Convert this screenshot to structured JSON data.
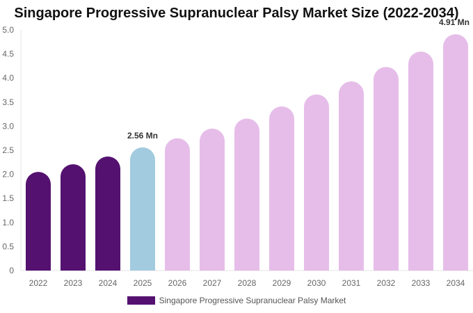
{
  "chart_data": {
    "type": "bar",
    "title": "Singapore Progressive Supranuclear Palsy Market Size (2022-2034)",
    "categories": [
      "2022",
      "2023",
      "2024",
      "2025",
      "2026",
      "2027",
      "2028",
      "2029",
      "2030",
      "2031",
      "2032",
      "2033",
      "2034"
    ],
    "series": [
      {
        "name": "Singapore Progressive Supranuclear Palsy Market",
        "values": [
          2.05,
          2.21,
          2.37,
          2.56,
          2.75,
          2.95,
          3.16,
          3.41,
          3.66,
          3.93,
          4.23,
          4.55,
          4.91
        ]
      }
    ],
    "data_labels": [
      {
        "category": "2025",
        "text": "2.56 Mn"
      },
      {
        "category": "2034",
        "text": "4.91 Mn"
      }
    ],
    "ylim": [
      0,
      5.0
    ],
    "yticks": [
      "0",
      "0.5",
      "1.0",
      "1.5",
      "2.0",
      "2.5",
      "3.0",
      "3.5",
      "4.0",
      "4.5",
      "5.0"
    ],
    "grid": false,
    "legend_position": "bottom",
    "colors": {
      "historical": "#541170",
      "current": "#a3cbdf",
      "forecast": "#e6bde9"
    }
  }
}
